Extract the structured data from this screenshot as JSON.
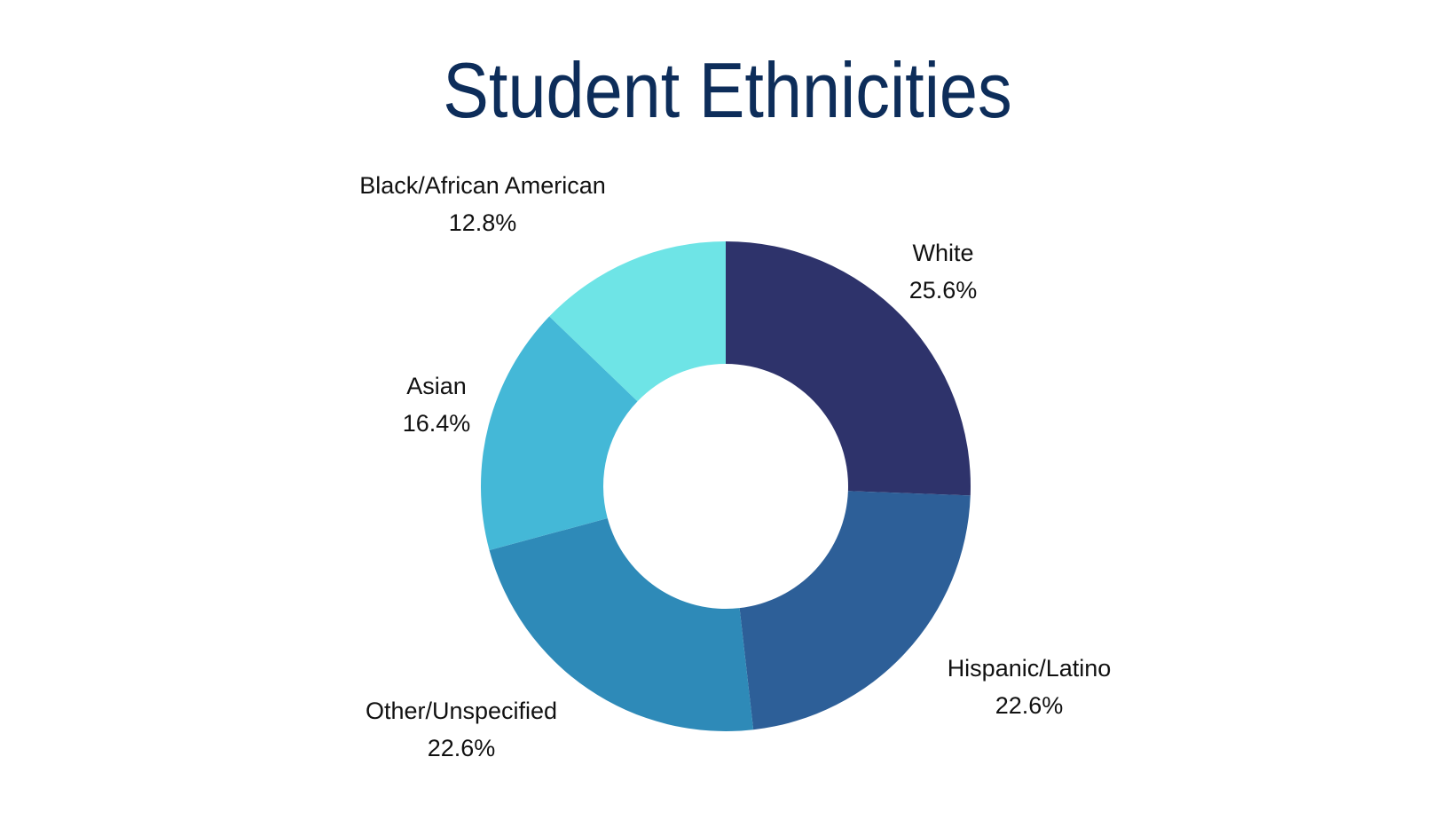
{
  "chart_data": {
    "type": "pie",
    "title": "Student Ethnicities",
    "donut": true,
    "legend": "none",
    "categories": [
      "White",
      "Hispanic/Latino",
      "Other/Unspecified",
      "Asian",
      "Black/African American"
    ],
    "values": [
      25.6,
      22.6,
      22.6,
      16.4,
      12.8
    ],
    "value_labels": [
      "25.6%",
      "22.6%",
      "22.6%",
      "16.4%",
      "12.8%"
    ],
    "colors": [
      "#2e336b",
      "#2d5f98",
      "#2e8ab8",
      "#44b8d7",
      "#6ee4e6"
    ],
    "title_color": "#0d2d5a"
  }
}
